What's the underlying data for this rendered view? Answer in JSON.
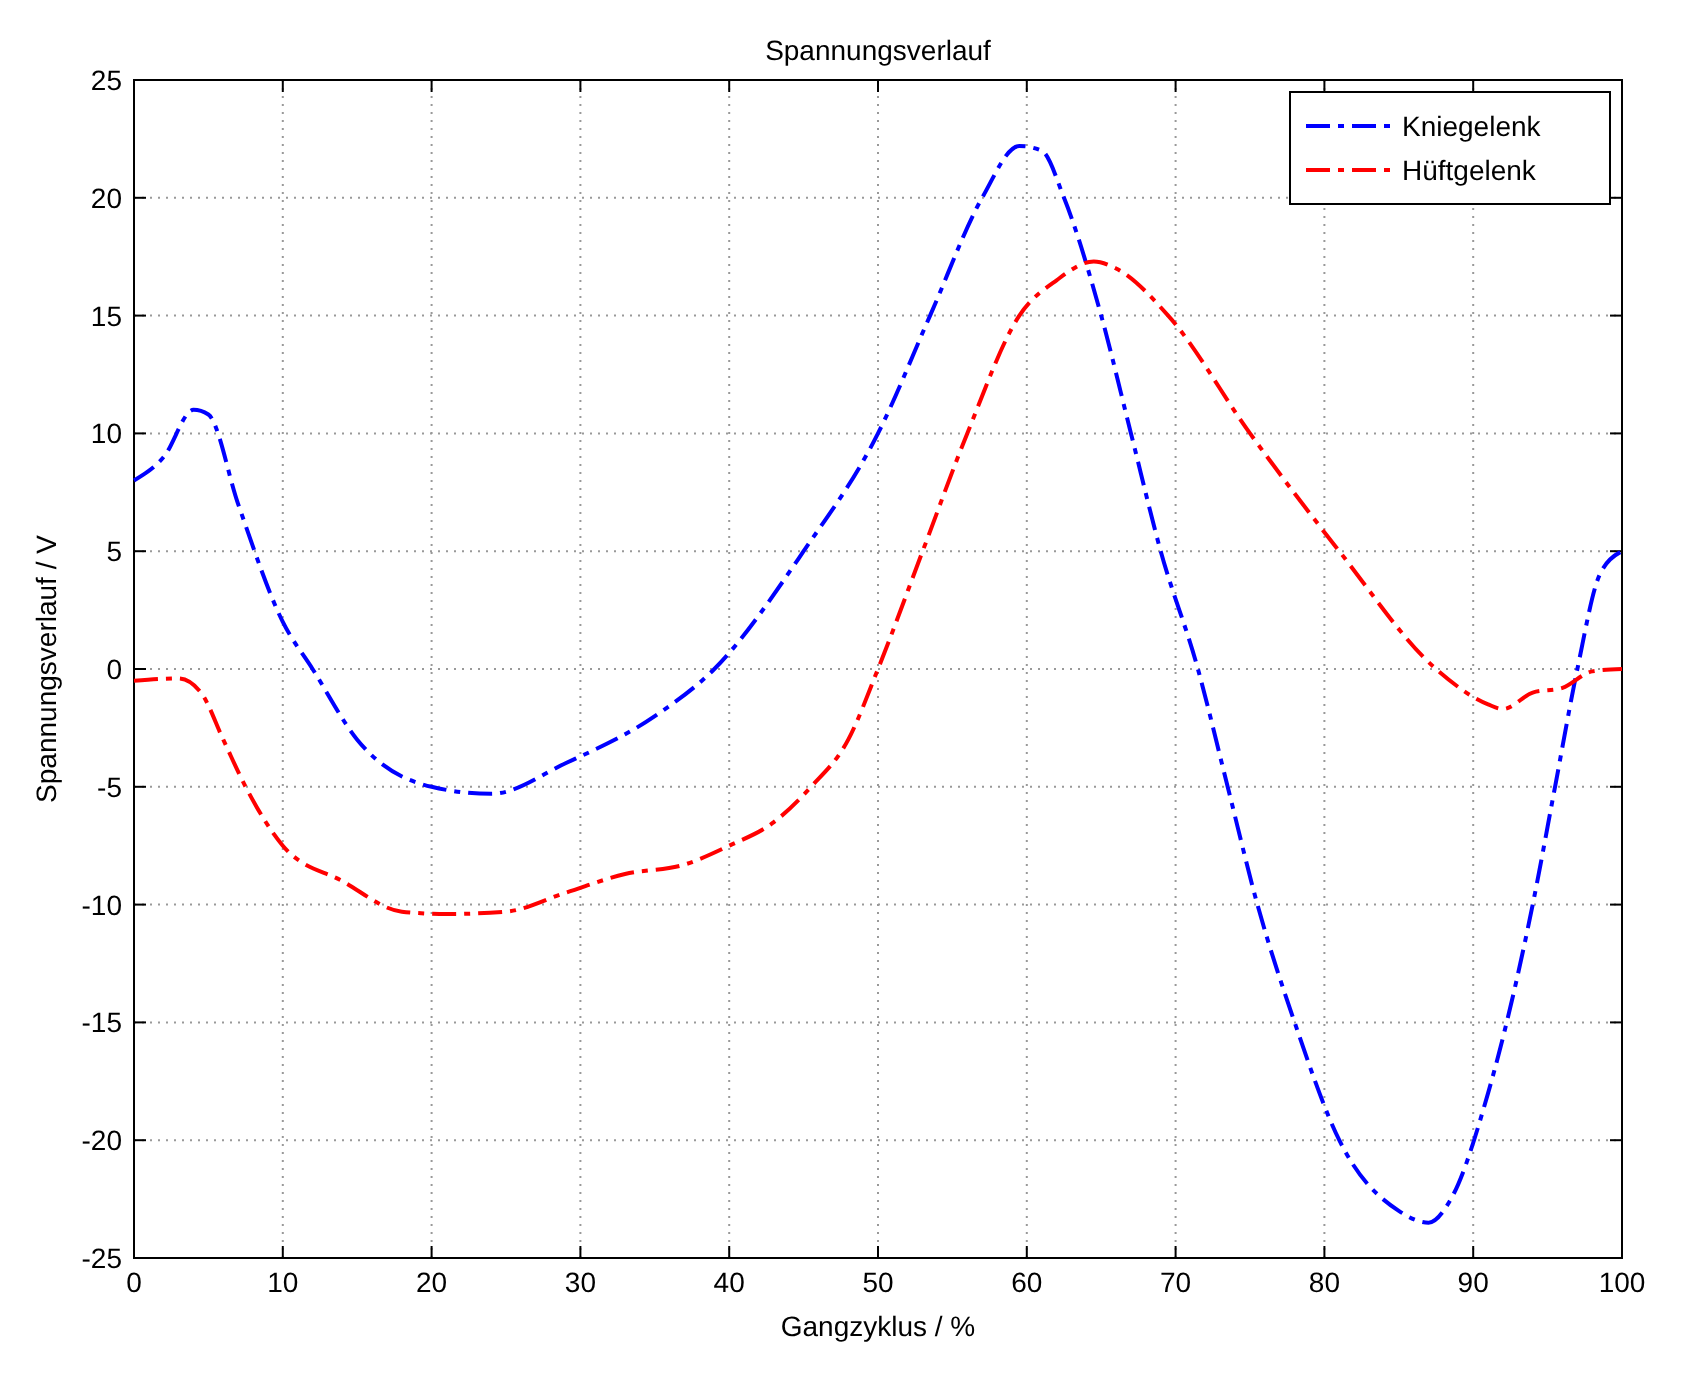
{
  "chart_data": {
    "type": "line",
    "title": "Spannungsverlauf",
    "xlabel": "Gangzyklus / %",
    "ylabel": "Spannungsverlauf / V",
    "xlim": [
      0,
      100
    ],
    "ylim": [
      -25,
      25
    ],
    "xticks": [
      0,
      10,
      20,
      30,
      40,
      50,
      60,
      70,
      80,
      90,
      100
    ],
    "yticks": [
      -25,
      -20,
      -15,
      -10,
      -5,
      0,
      5,
      10,
      15,
      20,
      25
    ],
    "grid": true,
    "legend": "top right",
    "line_style": "dashed",
    "series": [
      {
        "name": "Kniegelenk",
        "color": "#0000ff",
        "x": [
          0,
          2,
          4,
          5,
          7,
          10,
          12,
          15,
          20,
          24,
          29,
          35,
          39,
          45,
          50,
          53.5,
          57,
          59.5,
          61,
          62.5,
          65,
          67,
          69,
          71.5,
          73.5,
          75.5,
          78,
          81,
          85,
          87,
          88.5,
          91,
          94,
          95.5,
          97,
          98.5,
          100
        ],
        "values": [
          8,
          9,
          11,
          10.8,
          7,
          2,
          0,
          -3,
          -5,
          -5.3,
          -4,
          -2,
          0,
          5,
          10,
          15,
          20,
          22.2,
          22,
          20,
          15,
          10,
          5,
          0,
          -5,
          -10,
          -15,
          -20,
          -23,
          -23.5,
          -22.5,
          -18,
          -10,
          -5,
          0,
          4,
          5
        ]
      },
      {
        "name": "Hüftgelenk",
        "color": "#ff0000",
        "x": [
          0,
          3,
          4.5,
          6,
          7.5,
          10,
          14,
          18,
          21,
          25,
          29,
          33,
          37,
          40,
          43,
          45.5,
          48,
          50,
          53,
          56,
          59.5,
          62,
          64.5,
          66,
          69.5,
          75,
          81,
          87.5,
          91,
          92,
          94,
          96,
          98,
          100
        ],
        "values": [
          -0.5,
          -0.4,
          -1,
          -3,
          -5,
          -7.5,
          -9,
          -10.3,
          -10.4,
          -10.3,
          -9.5,
          -8.7,
          -8.3,
          -7.5,
          -6.5,
          -5,
          -3,
          0,
          5,
          10,
          15,
          16.5,
          17.3,
          17,
          15,
          10,
          5,
          0,
          -1.5,
          -1.7,
          -1,
          -0.8,
          -0.1,
          0
        ]
      }
    ]
  }
}
